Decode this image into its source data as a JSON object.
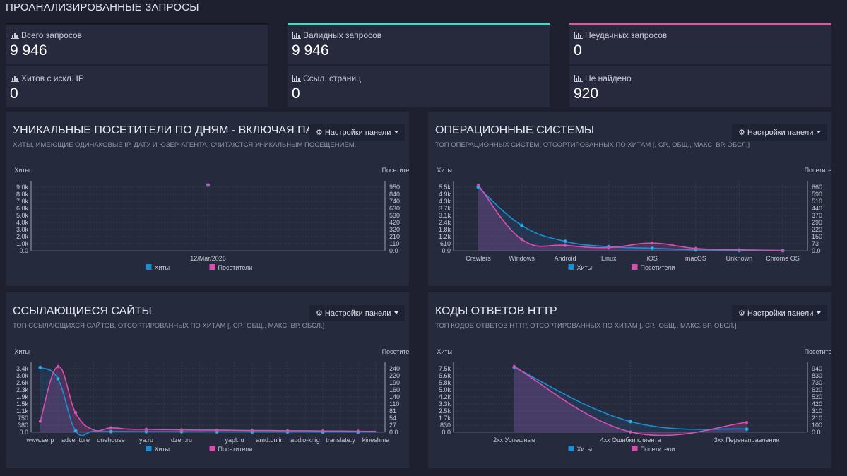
{
  "page_title": "ПРОАНАЛИЗИРОВАННЫЕ ЗАПРОСЫ",
  "stats": [
    {
      "label": "Всего запросов",
      "value": "9 946"
    },
    {
      "label": "Валидных запросов",
      "value": "9 946"
    },
    {
      "label": "Неудачных запросов",
      "value": "0"
    },
    {
      "label": "Хитов с искл. IP",
      "value": "0"
    },
    {
      "label": "Ссыл. страниц",
      "value": "0"
    },
    {
      "label": "Не найдено",
      "value": "920"
    }
  ],
  "colors": {
    "hits": "#1b8fd6",
    "visitors": "#d94fb0",
    "valid": "#2ee8c4",
    "failed": "#e4559a",
    "panel_bg": "#262a3d"
  },
  "icons": {
    "stat": "bar-chart-icon",
    "settings": "gear-icon",
    "dropdown": "caret-down-icon"
  },
  "panels": {
    "visitors": {
      "title": "УНИКАЛЬНЫЕ ПОСЕТИТЕЛИ ПО ДНЯМ - ВКЛЮЧАЯ ПАУКОВ",
      "subtitle": "ХИТЫ, ИМЕЮЩИЕ ОДИНАКОВЫЕ IP, ДАТУ И ЮЗЕР-АГЕНТА, СЧИТАЮТСЯ УНИКАЛЬНЫМ ПОСЕЩЕНИЕМ.",
      "button": "Настройки панели"
    },
    "os": {
      "title": "ОПЕРАЦИОННЫЕ СИСТЕМЫ",
      "subtitle": "ТОП ОПЕРАЦИОННЫХ СИСТЕМ, ОТСОРТИРОВАННЫХ ПО ХИТАМ [, СР., ОБЩ., МАКС. ВР. ОБСЛ.]",
      "button": "Настройки панели"
    },
    "referrers": {
      "title": "ССЫЛАЮЩИЕСЯ САЙТЫ",
      "subtitle": "ТОП ССЫЛАЮЩИХСЯ САЙТОВ, ОТСОРТИРОВАННЫХ ПО ХИТАМ [, СР., ОБЩ., МАКС. ВР. ОБСЛ.]",
      "button": "Настройки панели"
    },
    "status": {
      "title": "КОДЫ ОТВЕТОВ HTTP",
      "subtitle": "ТОП КОДОВ ОТВЕТОВ HTTP, ОТСОРТИРОВАННЫХ ПО ХИТАМ [, СР., ОБЩ., МАКС. ВР. ОБСЛ.]",
      "button": "Настройки панели"
    }
  },
  "chart_data": [
    {
      "type": "line",
      "title": "УНИКАЛЬНЫЕ ПОСЕТИТЕЛИ ПО ДНЯМ - ВКЛЮЧАЯ ПАУКОВ",
      "ylabel": "Хиты",
      "y2label": "Посетители",
      "categories": [
        "12/Mar/2026"
      ],
      "yticks": [
        "0.0",
        "1.0k",
        "2.0k",
        "3.0k",
        "4.0k",
        "5.0k",
        "6.0k",
        "7.0k",
        "8.0k",
        "9.0k"
      ],
      "y2ticks": [
        "0.0",
        "110",
        "210",
        "320",
        "420",
        "530",
        "630",
        "740",
        "840",
        "950"
      ],
      "ylim": [
        0,
        9946
      ],
      "y2lim": [
        0,
        1050
      ],
      "series": [
        {
          "name": "Хиты",
          "axis": "left",
          "values": [
            9946
          ]
        },
        {
          "name": "Посетители",
          "axis": "right",
          "values": [
            1050
          ]
        }
      ],
      "legend": "bottom",
      "grid": true
    },
    {
      "type": "area",
      "title": "ОПЕРАЦИОННЫЕ СИСТЕМЫ",
      "ylabel": "Хиты",
      "y2label": "Посетители",
      "categories": [
        "Crawlers",
        "Windows",
        "Android",
        "Linux",
        "iOS",
        "macOS",
        "Unknown",
        "Chrome OS"
      ],
      "yticks": [
        "0.0",
        "610",
        "1.2k",
        "1.8k",
        "2.4k",
        "3.1k",
        "3.7k",
        "4.3k",
        "4.9k",
        "5.5k"
      ],
      "y2ticks": [
        "0.0",
        "73",
        "150",
        "220",
        "290",
        "370",
        "440",
        "510",
        "590",
        "660"
      ],
      "ylim": [
        0,
        6100
      ],
      "y2lim": [
        0,
        730
      ],
      "series": [
        {
          "name": "Хиты",
          "axis": "left",
          "values": [
            5900,
            2350,
            870,
            380,
            230,
            90,
            30,
            10
          ]
        },
        {
          "name": "Посетители",
          "axis": "right",
          "values": [
            730,
            125,
            60,
            35,
            85,
            25,
            10,
            3
          ]
        }
      ],
      "legend": "bottom",
      "grid": true
    },
    {
      "type": "area",
      "title": "ССЫЛАЮЩИЕСЯ САЙТЫ",
      "ylabel": "Хиты",
      "y2label": "Посетители",
      "categories": [
        "www.serp",
        "",
        "adventure",
        "",
        "onehouse",
        "",
        "ya.ru",
        "",
        "dzen.ru",
        "",
        "",
        "yapl.ru",
        "",
        "amd.onlin",
        "",
        "audio-knig",
        "",
        "translate.y",
        "",
        "kineshma"
      ],
      "yticks": [
        "0.0",
        "380",
        "750",
        "1.1k",
        "1.5k",
        "1.9k",
        "2.3k",
        "2.6k",
        "3.0k",
        "3.4k"
      ],
      "y2ticks": [
        "0.0",
        "27",
        "54",
        "81",
        "110",
        "140",
        "160",
        "190",
        "220",
        "240"
      ],
      "ylim": [
        0,
        3750
      ],
      "y2lim": [
        0,
        270
      ],
      "series": [
        {
          "name": "Хиты",
          "axis": "left",
          "values": [
            3700,
            3050,
            80,
            55,
            40,
            40,
            35,
            35,
            30,
            25,
            25,
            20,
            20,
            18,
            15,
            15,
            12,
            12,
            10,
            10
          ]
        },
        {
          "name": "Посетители",
          "axis": "right",
          "values": [
            45,
            270,
            80,
            10,
            18,
            13,
            12,
            11,
            10,
            9,
            9,
            8,
            7,
            7,
            6,
            6,
            5,
            5,
            4,
            4
          ]
        }
      ],
      "legend": "bottom",
      "grid": true
    },
    {
      "type": "area",
      "title": "КОДЫ ОТВЕТОВ HTTP",
      "ylabel": "Хиты",
      "y2label": "Посетители",
      "categories": [
        "2xx Успешные",
        "4xx Ошибки клиента",
        "3xx Перенаправления"
      ],
      "yticks": [
        "0.0",
        "830",
        "1.7k",
        "2.5k",
        "3.3k",
        "4.2k",
        "5.0k",
        "5.8k",
        "6.6k",
        "7.5k"
      ],
      "y2ticks": [
        "0.0",
        "100",
        "210",
        "310",
        "420",
        "520",
        "620",
        "730",
        "830",
        "940"
      ],
      "ylim": [
        0,
        8300
      ],
      "y2lim": [
        0,
        1040
      ],
      "series": [
        {
          "name": "Хиты",
          "axis": "left",
          "values": [
            8200,
            1350,
            390
          ]
        },
        {
          "name": "Посетители",
          "axis": "right",
          "values": [
            1040,
            5,
            155
          ]
        }
      ],
      "legend": "bottom",
      "grid": true
    }
  ]
}
